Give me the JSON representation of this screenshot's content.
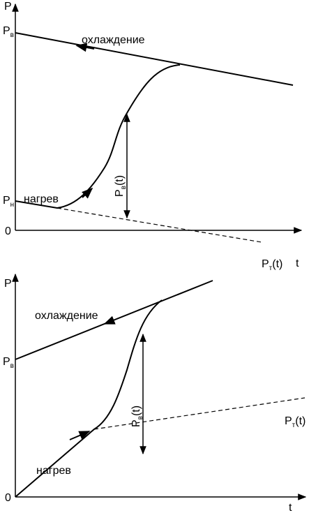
{
  "panels": [
    {
      "y_axis": "P",
      "x_axis": "t",
      "origin": "0",
      "cooling": "охлаждение",
      "heating": "нагрев",
      "p_upper": {
        "main": "P",
        "sub": "в"
      },
      "p_lower": {
        "main": "P",
        "sub": "н"
      },
      "p_diff": {
        "main": "P",
        "sub": "в",
        "arg": "(t)"
      },
      "p_t": {
        "main": "P",
        "sub": "т",
        "arg": "(t)"
      }
    },
    {
      "y_axis": "P",
      "x_axis": "t",
      "origin": "0",
      "cooling": "охлаждение",
      "heating": "нагрев",
      "p_upper": {
        "main": "P",
        "sub": "в"
      },
      "p_diff": {
        "main": "P",
        "sub": "в",
        "arg": "(t)"
      },
      "p_t": {
        "main": "P",
        "sub": "т",
        "arg": "(t)"
      }
    }
  ]
}
